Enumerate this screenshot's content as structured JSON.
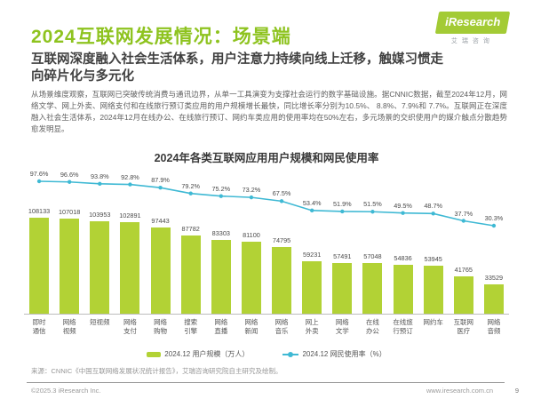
{
  "page": {
    "title": "2024互联网发展情况：场景端",
    "subtitle": "互联网深度融入社会生活体系，用户注意力持续向线上迁移，触媒习惯走向碎片化与多元化",
    "paragraph": "从场景维度观察，互联网已突破传统消费与通讯边界，从单一工具演变为支撑社会运行的数字基础设施。据CNNIC数据，截至2024年12月，网络文学、网上外卖、网络支付和在线旅行预订类应用的用户规模增长最快，同比增长率分别为10.5%、 8.8%、7.9%和 7.7%。互联网正在深度融入社会生活体系，2024年12月在线办公、在线旅行预订、网约车类应用的使用率均在50%左右，多元场景的交织使用户的媒介触点分散趋势愈发明显。"
  },
  "logo": {
    "brand": "iResearch",
    "brand_cn": "艾瑞咨询"
  },
  "chart_data": {
    "type": "bar",
    "title": "2024年各类互联网应用用户规模和网民使用率",
    "categories": [
      "即时通信",
      "网络视频",
      "短视频",
      "网络支付",
      "网络购物",
      "搜索引擎",
      "网络直播",
      "网络新闻",
      "网络音乐",
      "网上外卖",
      "网络文学",
      "在线办公",
      "在线旅行预订",
      "网约车",
      "互联网医疗",
      "网络音频"
    ],
    "series": [
      {
        "name": "2024.12 用户规模（万人）",
        "type": "bar",
        "color": "#b2d235",
        "values": [
          108133,
          107018,
          103953,
          102891,
          97443,
          87782,
          83303,
          81100,
          74795,
          59231,
          57491,
          57048,
          54836,
          53945,
          41765,
          33529
        ]
      },
      {
        "name": "2024.12 网民使用率（%）",
        "type": "line",
        "color": "#3fb9d4",
        "values": [
          97.6,
          96.6,
          93.8,
          92.8,
          87.9,
          79.2,
          75.2,
          73.2,
          67.5,
          53.4,
          51.9,
          51.5,
          49.5,
          48.7,
          37.7,
          30.3
        ]
      }
    ],
    "xlabel": "",
    "ylabel": "",
    "legend_position": "bottom",
    "grid": false,
    "bar_unit": "万人",
    "line_unit": "%"
  },
  "source": "来源：CNNIC《中国互联网络发展状况统计报告》，艾瑞咨询研究院自主研究及绘制。",
  "footer": {
    "copyright": "©2025.3 iResearch Inc.",
    "url": "www.iresearch.com.cn",
    "page_number": "9"
  },
  "colors": {
    "accent_green": "#8ec31f",
    "bar_green": "#b2d235",
    "line_cyan": "#3fb9d4"
  }
}
